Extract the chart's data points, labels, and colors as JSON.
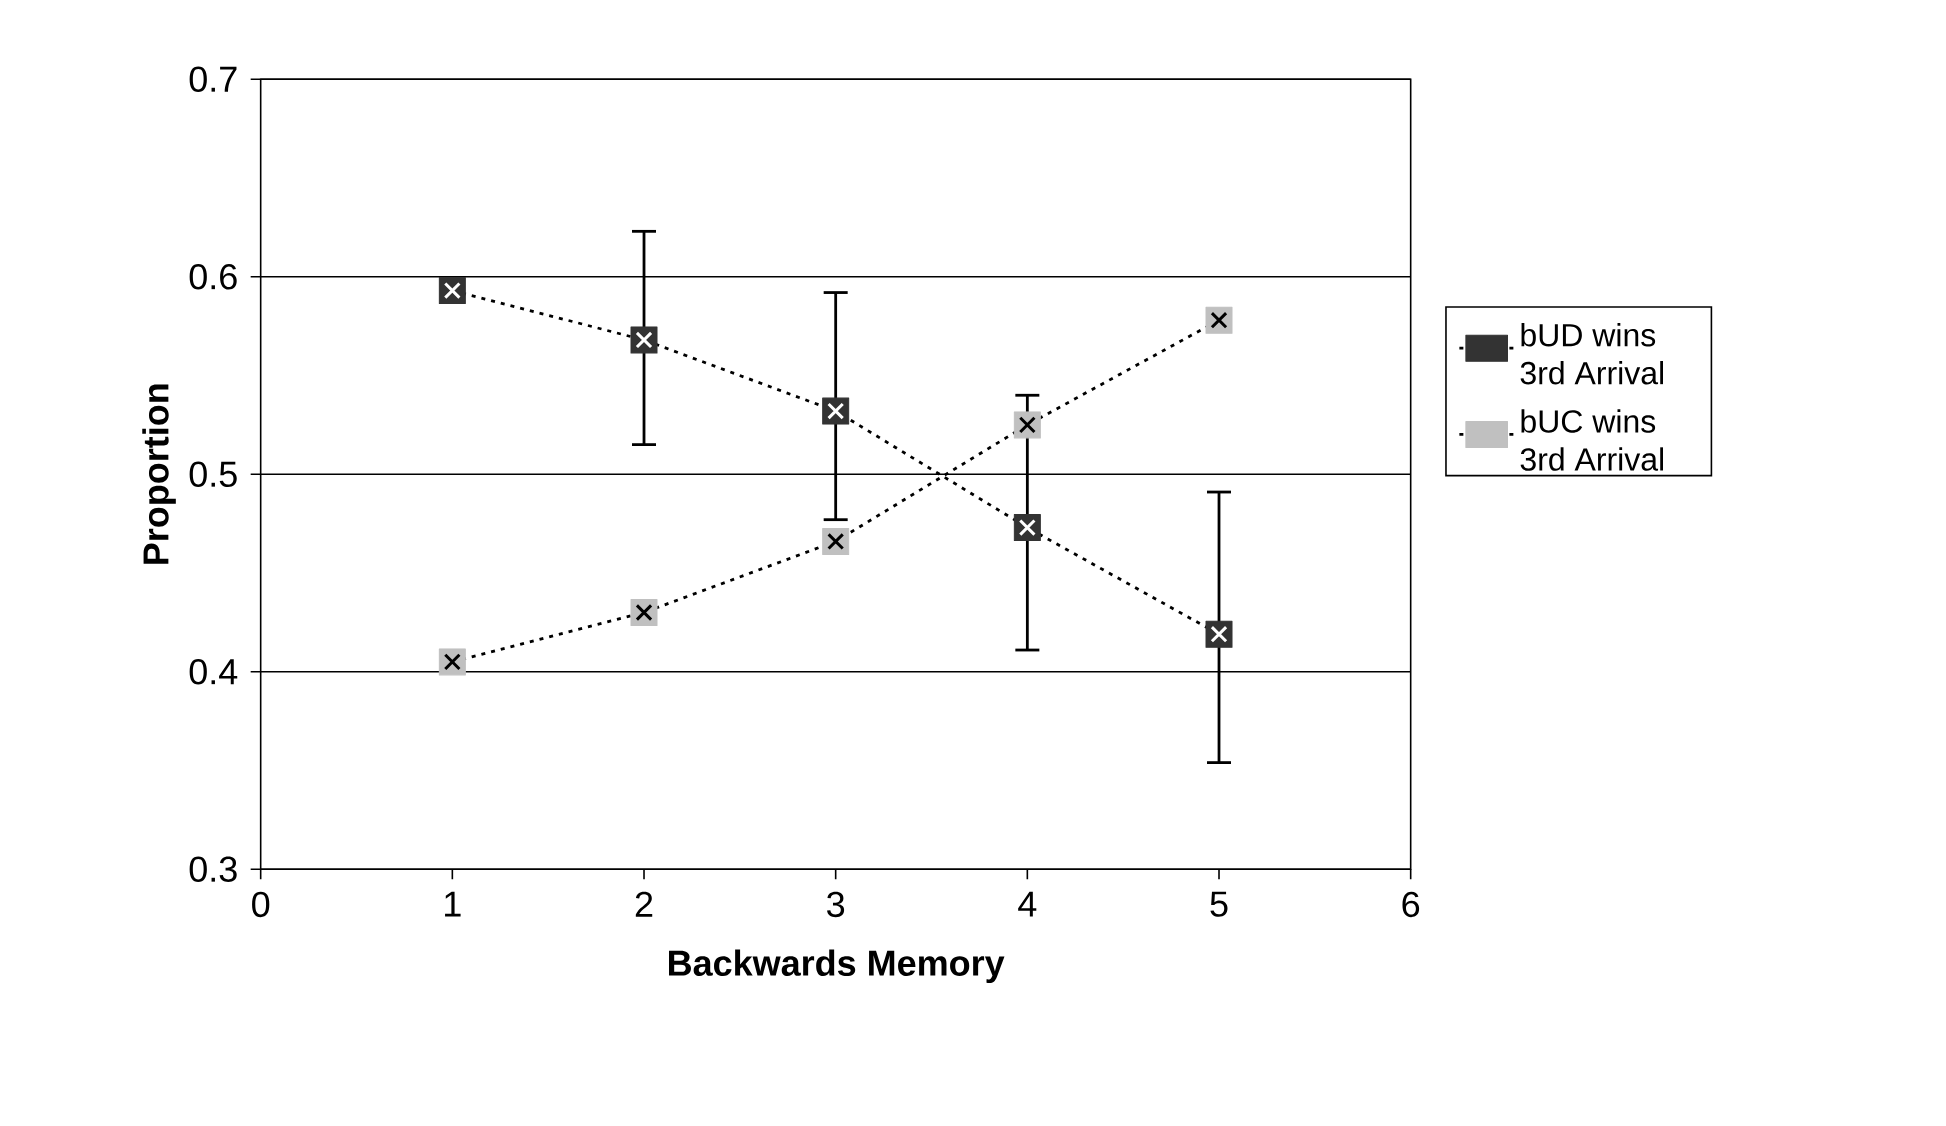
{
  "chart_data": {
    "type": "line",
    "xlabel": "Backwards Memory",
    "ylabel": "Proportion",
    "x": [
      1,
      2,
      3,
      4,
      5
    ],
    "xlim": [
      0,
      6
    ],
    "xticks": [
      0,
      1,
      2,
      3,
      4,
      5,
      6
    ],
    "ylim": [
      0.3,
      0.7
    ],
    "yticks": [
      0.3,
      0.4,
      0.5,
      0.6,
      0.7
    ],
    "grid": "y",
    "legend": "right",
    "marker": "square",
    "line_style": "dotted",
    "series": [
      {
        "name": "bUD wins 3rd Arrival",
        "color": "#333333",
        "values": [
          0.593,
          0.568,
          0.532,
          0.473,
          0.419
        ],
        "errors": [
          null,
          [
            0.515,
            0.623
          ],
          [
            0.477,
            0.592
          ],
          [
            0.411,
            0.54
          ],
          [
            0.354,
            0.491
          ]
        ]
      },
      {
        "name": "bUC wins 3rd Arrival",
        "color": "#c0c0c0",
        "values": [
          0.405,
          0.43,
          0.466,
          0.525,
          0.578
        ]
      }
    ]
  }
}
